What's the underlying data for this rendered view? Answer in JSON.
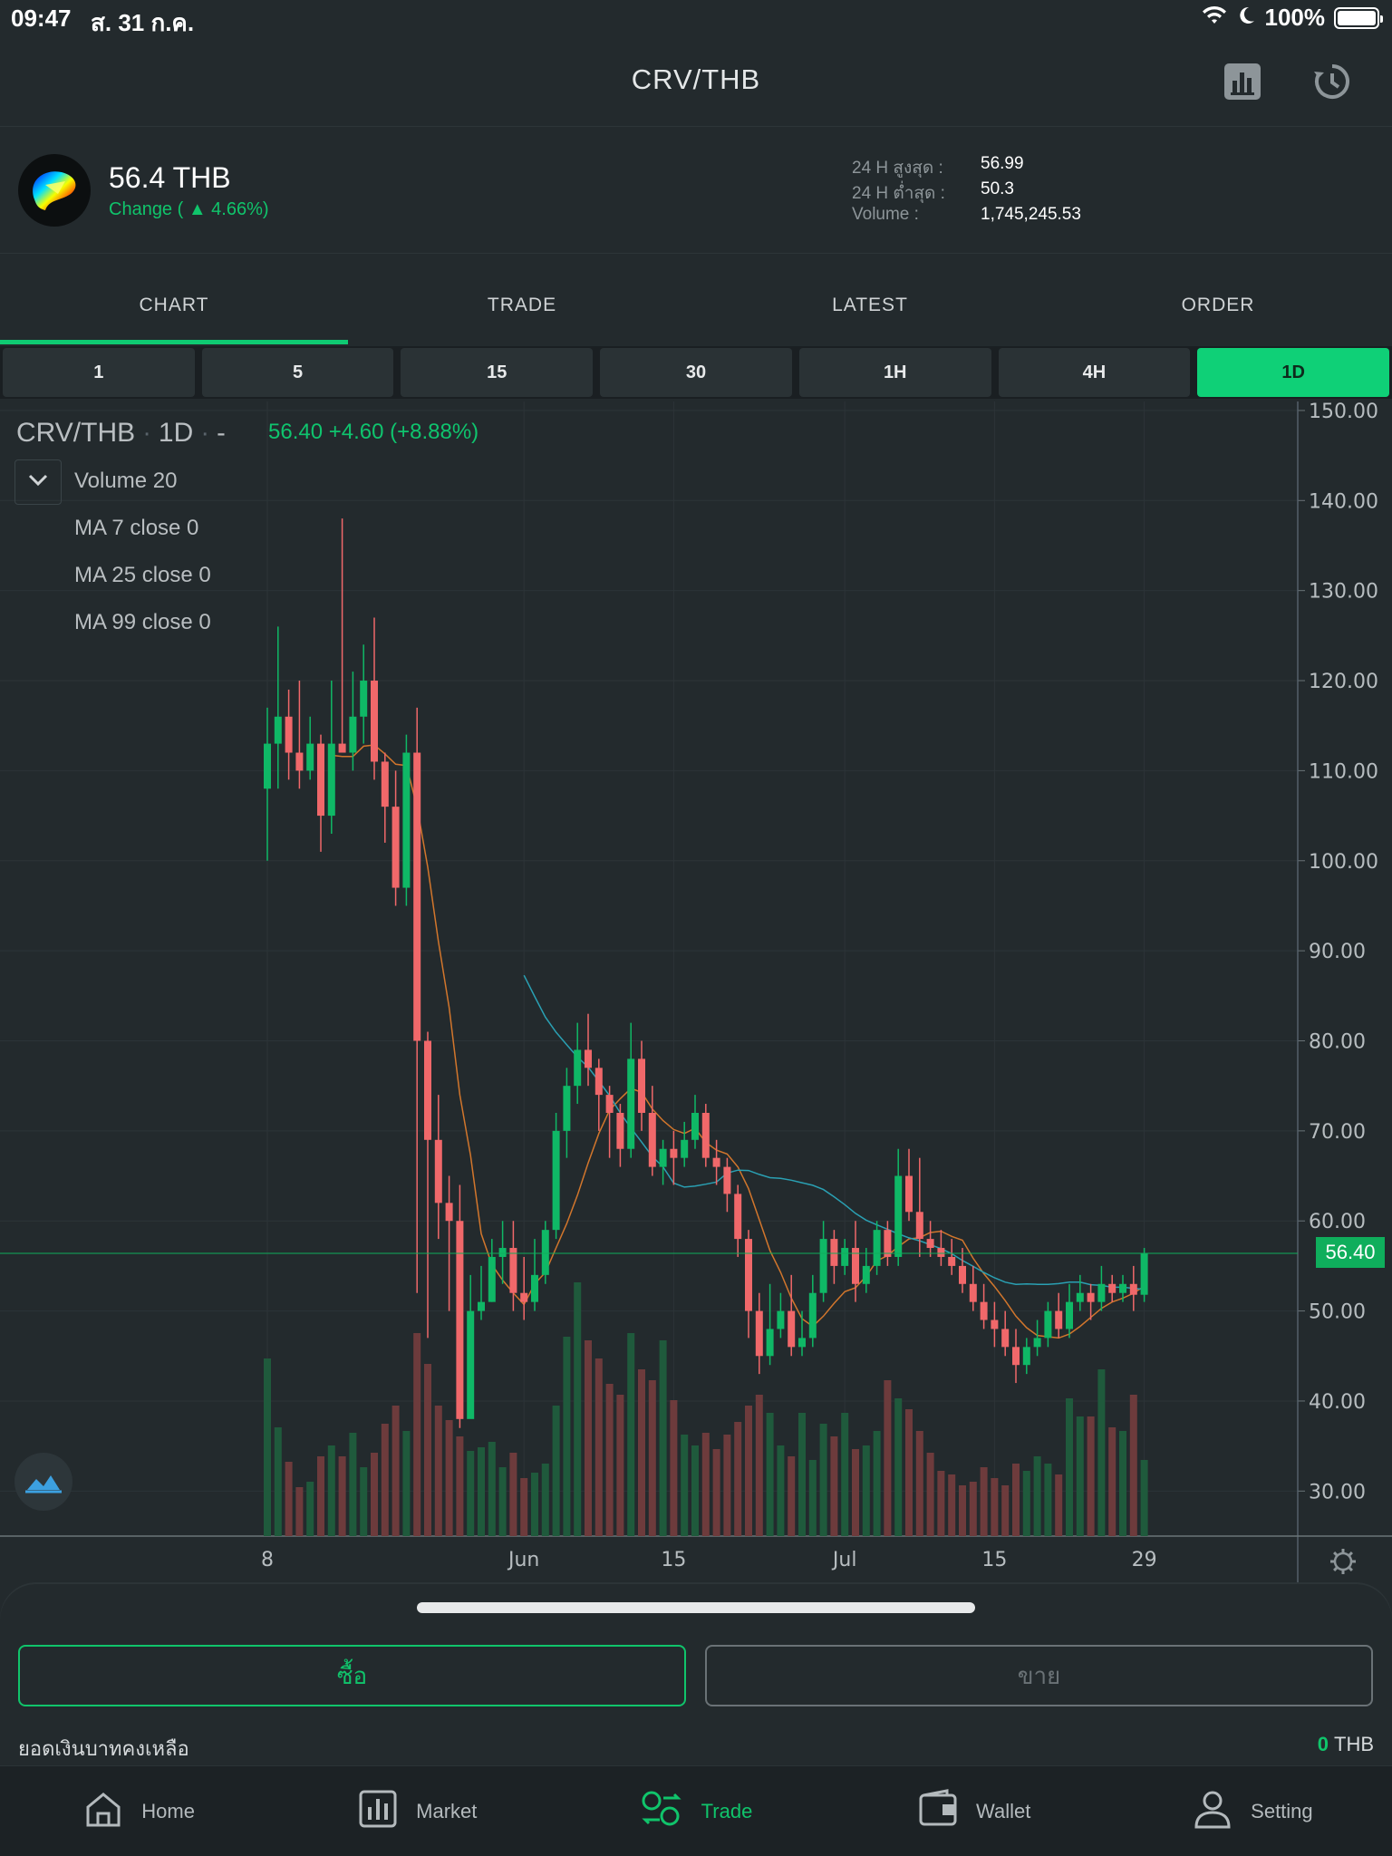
{
  "status_bar": {
    "time": "09:47",
    "date": "ส. 31 ก.ค.",
    "battery": "100%"
  },
  "header": {
    "title": "CRV/THB"
  },
  "ticker": {
    "price": "56.4 THB",
    "change": "Change ( ▲ 4.66%)",
    "stats": [
      {
        "label": "24 H สูงสุด :",
        "value": "56.99"
      },
      {
        "label": "24 H ต่ำสุด :",
        "value": "50.3"
      },
      {
        "label": "Volume :",
        "value": "1,745,245.53"
      }
    ]
  },
  "tabs": [
    "CHART",
    "TRADE",
    "LATEST",
    "ORDER"
  ],
  "active_tab": "CHART",
  "intervals": [
    "1",
    "5",
    "15",
    "30",
    "1H",
    "4H",
    "1D"
  ],
  "active_interval": "1D",
  "chart_legend": {
    "symbol": "CRV/THB",
    "interval": "1D",
    "dash": "-",
    "quote": "56.40  +4.60 (+8.88%)",
    "indicators": [
      "Volume 20",
      "MA 7 close 0",
      "MA 25 close 0",
      "MA 99 close 0"
    ]
  },
  "chart_data": {
    "type": "candlestick",
    "symbol": "CRV/THB",
    "y_ticks": [
      "150.00",
      "140.00",
      "130.00",
      "120.00",
      "110.00",
      "100.00",
      "90.00",
      "80.00",
      "70.00",
      "60.00",
      "50.00",
      "40.00",
      "30.00"
    ],
    "ylim": [
      25,
      151
    ],
    "x_ticks": [
      {
        "label": "8",
        "day": 0
      },
      {
        "label": "Jun",
        "day": 24
      },
      {
        "label": "15",
        "day": 38
      },
      {
        "label": "Jul",
        "day": 54
      },
      {
        "label": "15",
        "day": 68
      },
      {
        "label": "29",
        "day": 82
      }
    ],
    "last_price": "56.40",
    "colors": {
      "up": "#0fb866",
      "down": "#f0686a",
      "up_volume": "#1f5a3c",
      "down_volume": "#6d3b3c",
      "ma7": "#d2762c",
      "ma25": "#2aa0b3"
    },
    "candles": [
      [
        0,
        108,
        113,
        100,
        117
      ],
      [
        1,
        113,
        116,
        108,
        126
      ],
      [
        2,
        116,
        112,
        109,
        119
      ],
      [
        3,
        112,
        110,
        108,
        120
      ],
      [
        4,
        110,
        113,
        109,
        116
      ],
      [
        5,
        113,
        105,
        101,
        114
      ],
      [
        6,
        105,
        113,
        103,
        120
      ],
      [
        7,
        113,
        112,
        112,
        138
      ],
      [
        8,
        112,
        116,
        110,
        121
      ],
      [
        9,
        116,
        120,
        113,
        124
      ],
      [
        10,
        120,
        111,
        109,
        127
      ],
      [
        11,
        111,
        106,
        102,
        112
      ],
      [
        12,
        106,
        97,
        95,
        110
      ],
      [
        13,
        97,
        112,
        95,
        114
      ],
      [
        14,
        112,
        80,
        52,
        117
      ],
      [
        15,
        80,
        69,
        47,
        81
      ],
      [
        16,
        69,
        62,
        58,
        74
      ],
      [
        17,
        62,
        60,
        50,
        65
      ],
      [
        18,
        60,
        38,
        37,
        64
      ],
      [
        19,
        38,
        50,
        39,
        54
      ],
      [
        20,
        50,
        51,
        49,
        55
      ],
      [
        21,
        51,
        56,
        51,
        58
      ],
      [
        22,
        56,
        57,
        53,
        60
      ],
      [
        23,
        57,
        52,
        50,
        60
      ],
      [
        24,
        52,
        51,
        49,
        56
      ],
      [
        25,
        51,
        54,
        50,
        58
      ],
      [
        26,
        54,
        59,
        53,
        60
      ],
      [
        27,
        59,
        70,
        58,
        72
      ],
      [
        28,
        70,
        75,
        67,
        77
      ],
      [
        29,
        75,
        79,
        73,
        82
      ],
      [
        30,
        79,
        77,
        75,
        83
      ],
      [
        31,
        77,
        74,
        70,
        78
      ],
      [
        32,
        74,
        72,
        67,
        75
      ],
      [
        33,
        72,
        68,
        66,
        73
      ],
      [
        34,
        68,
        78,
        67,
        82
      ],
      [
        35,
        78,
        72,
        70,
        80
      ],
      [
        36,
        72,
        66,
        65,
        75
      ],
      [
        37,
        66,
        68,
        64,
        69
      ],
      [
        38,
        68,
        67,
        64,
        70
      ],
      [
        39,
        67,
        69,
        66,
        71
      ],
      [
        40,
        69,
        72,
        68,
        74
      ],
      [
        41,
        72,
        67,
        66,
        73
      ],
      [
        42,
        67,
        66,
        64,
        69
      ],
      [
        43,
        66,
        63,
        61,
        67
      ],
      [
        44,
        63,
        58,
        56,
        64
      ],
      [
        45,
        58,
        50,
        47,
        59
      ],
      [
        46,
        50,
        45,
        43,
        52
      ],
      [
        47,
        45,
        48,
        44,
        53
      ],
      [
        48,
        48,
        50,
        47,
        52
      ],
      [
        49,
        50,
        46,
        45,
        54
      ],
      [
        50,
        46,
        47,
        45,
        50
      ],
      [
        51,
        47,
        52,
        46,
        54
      ],
      [
        52,
        52,
        58,
        51,
        60
      ],
      [
        53,
        58,
        55,
        53,
        59
      ],
      [
        54,
        55,
        57,
        54,
        58
      ],
      [
        55,
        57,
        53,
        51,
        60
      ],
      [
        56,
        53,
        55,
        52,
        57
      ],
      [
        57,
        55,
        59,
        54,
        60
      ],
      [
        58,
        59,
        56,
        55,
        60
      ],
      [
        59,
        56,
        65,
        55,
        68
      ],
      [
        60,
        65,
        61,
        60,
        68
      ],
      [
        61,
        61,
        58,
        56,
        67
      ],
      [
        62,
        58,
        57,
        56,
        60
      ],
      [
        63,
        57,
        56,
        55,
        59
      ],
      [
        64,
        56,
        55,
        54,
        58
      ],
      [
        65,
        55,
        53,
        52,
        57
      ],
      [
        66,
        53,
        51,
        50,
        55
      ],
      [
        67,
        51,
        49,
        48,
        53
      ],
      [
        68,
        49,
        48,
        46,
        51
      ],
      [
        69,
        48,
        46,
        45,
        50
      ],
      [
        70,
        46,
        44,
        42,
        48
      ],
      [
        71,
        44,
        46,
        43,
        47
      ],
      [
        72,
        46,
        47,
        45,
        49
      ],
      [
        73,
        47,
        50,
        46,
        51
      ],
      [
        74,
        50,
        48,
        47,
        52
      ],
      [
        75,
        48,
        51,
        47,
        53
      ],
      [
        76,
        51,
        52,
        50,
        54
      ],
      [
        77,
        52,
        51,
        49,
        53
      ],
      [
        78,
        51,
        53,
        50,
        55
      ],
      [
        79,
        53,
        52,
        51,
        54
      ],
      [
        80,
        52,
        53,
        51,
        54
      ],
      [
        81,
        53,
        51.8,
        50,
        55
      ],
      [
        82,
        51.8,
        56.4,
        51,
        57
      ]
    ],
    "volumes": [
      [
        0,
        98
      ],
      [
        1,
        60
      ],
      [
        2,
        41
      ],
      [
        3,
        27
      ],
      [
        4,
        30
      ],
      [
        5,
        44
      ],
      [
        6,
        50
      ],
      [
        7,
        44
      ],
      [
        8,
        57
      ],
      [
        9,
        38
      ],
      [
        10,
        46
      ],
      [
        11,
        62
      ],
      [
        12,
        72
      ],
      [
        13,
        58
      ],
      [
        14,
        112
      ],
      [
        15,
        95
      ],
      [
        16,
        72
      ],
      [
        17,
        64
      ],
      [
        18,
        55
      ],
      [
        19,
        47
      ],
      [
        20,
        49
      ],
      [
        21,
        52
      ],
      [
        22,
        38
      ],
      [
        23,
        46
      ],
      [
        24,
        32
      ],
      [
        25,
        35
      ],
      [
        26,
        40
      ],
      [
        27,
        72
      ],
      [
        28,
        110
      ],
      [
        29,
        140
      ],
      [
        30,
        108
      ],
      [
        31,
        98
      ],
      [
        32,
        84
      ],
      [
        33,
        78
      ],
      [
        34,
        112
      ],
      [
        35,
        92
      ],
      [
        36,
        86
      ],
      [
        37,
        108
      ],
      [
        38,
        75
      ],
      [
        39,
        56
      ],
      [
        40,
        50
      ],
      [
        41,
        57
      ],
      [
        42,
        48
      ],
      [
        43,
        56
      ],
      [
        44,
        63
      ],
      [
        45,
        72
      ],
      [
        46,
        78
      ],
      [
        47,
        68
      ],
      [
        48,
        50
      ],
      [
        49,
        44
      ],
      [
        50,
        68
      ],
      [
        51,
        42
      ],
      [
        52,
        62
      ],
      [
        53,
        55
      ],
      [
        54,
        68
      ],
      [
        55,
        48
      ],
      [
        56,
        50
      ],
      [
        57,
        58
      ],
      [
        58,
        86
      ],
      [
        59,
        76
      ],
      [
        60,
        70
      ],
      [
        61,
        58
      ],
      [
        62,
        46
      ],
      [
        63,
        36
      ],
      [
        64,
        34
      ],
      [
        65,
        28
      ],
      [
        66,
        30
      ],
      [
        67,
        38
      ],
      [
        68,
        32
      ],
      [
        69,
        28
      ],
      [
        70,
        40
      ],
      [
        71,
        36
      ],
      [
        72,
        44
      ],
      [
        73,
        40
      ],
      [
        74,
        34
      ],
      [
        75,
        76
      ],
      [
        76,
        66
      ],
      [
        77,
        66
      ],
      [
        78,
        92
      ],
      [
        79,
        60
      ],
      [
        80,
        58
      ],
      [
        81,
        78
      ],
      [
        82,
        42
      ]
    ]
  },
  "bottom_sheet": {
    "buy_label": "ซื้อ",
    "sell_label": "ขาย",
    "balance_label": "ยอดเงินบาทคงเหลือ",
    "balance_value": "0",
    "balance_unit": "THB"
  },
  "bottom_nav": [
    "Home",
    "Market",
    "Trade",
    "Wallet",
    "Setting"
  ],
  "active_nav": "Trade",
  "icons": {
    "stats": "bar-chart-icon",
    "history": "history-icon",
    "expand": "chevron-down-icon",
    "settings": "gear-icon"
  }
}
